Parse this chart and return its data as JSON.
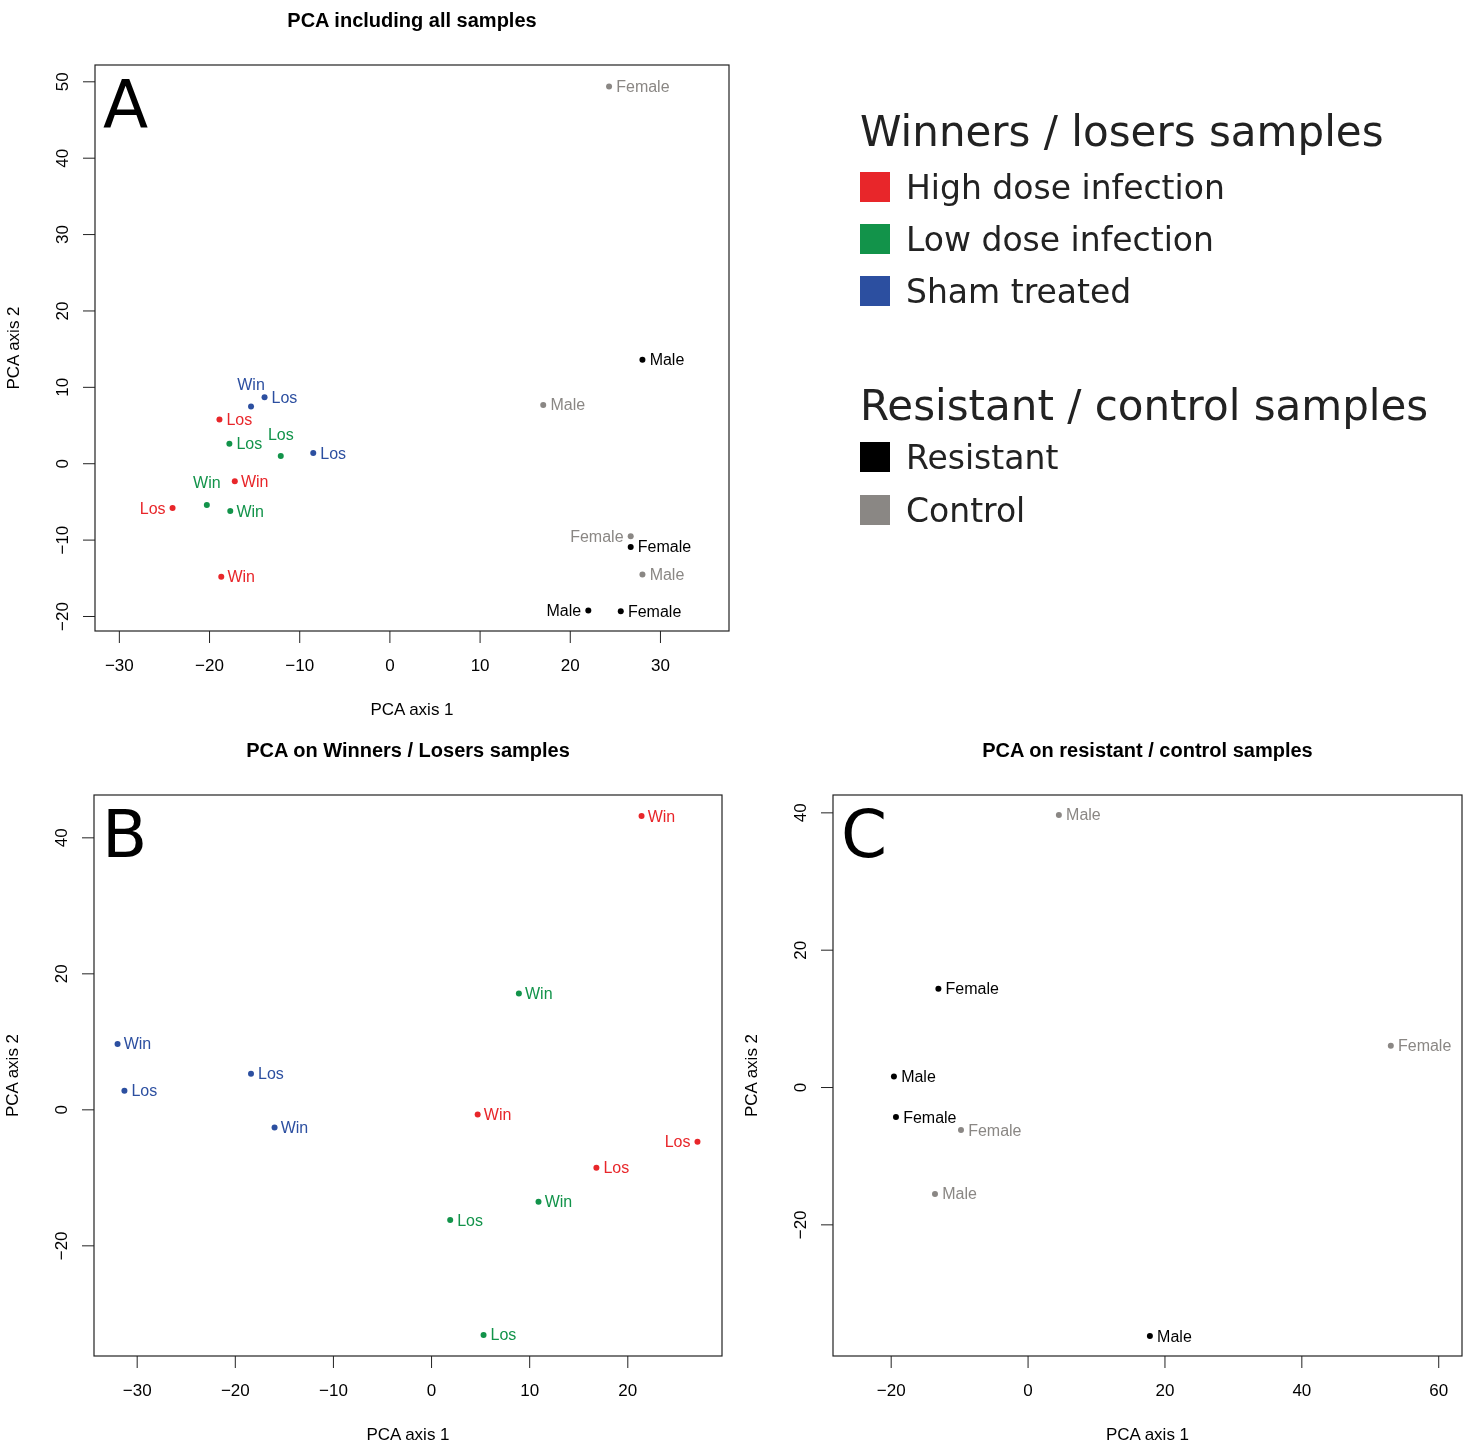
{
  "chart_data": [
    {
      "type": "scatter",
      "title": "PCA including all samples",
      "xlabel": "PCA axis 1",
      "ylabel": "PCA axis 2",
      "xlim": [
        -32.7,
        37.6
      ],
      "ylim": [
        -21.9,
        52.2
      ],
      "xticks": [
        -30,
        -20,
        -10,
        0,
        10,
        20,
        30
      ],
      "yticks": [
        -20,
        -10,
        0,
        10,
        20,
        30,
        40,
        50
      ],
      "marker": "circle",
      "legend": "right",
      "legend_title": "Winners / losers samples",
      "annotations": [
        "A",
        "Resistant / control samples"
      ],
      "series": [
        {
          "name": "High dose infection",
          "color": "#e8262a",
          "x": [
            -18.9,
            -17.2,
            -24.1,
            -18.7
          ],
          "values": [
            5.8,
            -2.3,
            -5.8,
            -14.8
          ],
          "value_labels": [
            "Los",
            "Win",
            "Los",
            "Win"
          ]
        },
        {
          "name": "Low dose infection",
          "color": "#12934a",
          "x": [
            -17.8,
            -12.1,
            -20.3,
            -17.7
          ],
          "values": [
            2.6,
            1.0,
            -5.4,
            -6.2
          ],
          "value_labels": [
            "Los",
            "Los",
            "Win",
            "Win"
          ]
        },
        {
          "name": "Sham treated",
          "color": "#2c4fa0",
          "x": [
            -15.4,
            -13.9,
            -8.5
          ],
          "values": [
            7.5,
            8.7,
            1.4
          ],
          "value_labels": [
            "Win",
            "Los",
            "Los"
          ]
        },
        {
          "name": "Resistant",
          "color": "#000000",
          "x": [
            28.0,
            26.7,
            22.0,
            25.6
          ],
          "values": [
            13.6,
            -10.9,
            -19.2,
            -19.3
          ],
          "value_labels": [
            "Male",
            "Female",
            "Male",
            "Female"
          ]
        },
        {
          "name": "Control",
          "color": "#8a8784",
          "x": [
            24.3,
            17.0,
            26.7,
            28.0
          ],
          "values": [
            49.4,
            7.7,
            -9.5,
            -14.5
          ],
          "value_labels": [
            "Female",
            "Male",
            "Female",
            "Male"
          ]
        }
      ]
    },
    {
      "type": "scatter",
      "title": "PCA on Winners / Losers samples",
      "xlabel": "PCA axis 1",
      "ylabel": "PCA axis 2",
      "xlim": [
        -34.4,
        29.6
      ],
      "ylim": [
        -36.2,
        46.3
      ],
      "xticks": [
        -30,
        -20,
        -10,
        0,
        10,
        20
      ],
      "yticks": [
        -20,
        0,
        20,
        40
      ],
      "marker": "circle",
      "annotations": [
        "B"
      ],
      "series": [
        {
          "color": "#e8262a",
          "x": [
            21.4,
            4.7,
            27.1,
            16.8
          ],
          "values": [
            43.2,
            -0.7,
            -4.7,
            -8.5
          ],
          "value_labels": [
            "Win",
            "Win",
            "Los",
            "Los"
          ]
        },
        {
          "color": "#12934a",
          "x": [
            8.9,
            10.9,
            1.9,
            5.3
          ],
          "values": [
            17.1,
            -13.5,
            -16.2,
            -33.1
          ],
          "value_labels": [
            "Win",
            "Win",
            "Los",
            "Los"
          ]
        },
        {
          "color": "#2c4fa0",
          "x": [
            -32.0,
            -31.3,
            -18.4,
            -16.0
          ],
          "values": [
            9.7,
            2.8,
            5.3,
            -2.6
          ],
          "value_labels": [
            "Win",
            "Los",
            "Los",
            "Win"
          ]
        }
      ]
    },
    {
      "type": "scatter",
      "title": "PCA on resistant / control samples",
      "xlabel": "PCA axis 1",
      "ylabel": "PCA axis 2",
      "xlim": [
        -28.5,
        63.4
      ],
      "ylim": [
        -39.1,
        42.6
      ],
      "xticks": [
        -20,
        0,
        20,
        40,
        60
      ],
      "yticks": [
        -20,
        0,
        20,
        40
      ],
      "marker": "circle",
      "annotations": [
        "C"
      ],
      "series": [
        {
          "color": "#000000",
          "x": [
            -13.1,
            -19.6,
            -19.3,
            17.8
          ],
          "values": [
            14.4,
            1.6,
            -4.3,
            -36.2
          ],
          "value_labels": [
            "Female",
            "Male",
            "Female",
            "Male"
          ]
        },
        {
          "color": "#8a8784",
          "x": [
            4.5,
            53.0,
            -9.8,
            -13.6
          ],
          "values": [
            39.7,
            6.1,
            -6.2,
            -15.5
          ],
          "value_labels": [
            "Male",
            "Female",
            "Female",
            "Male"
          ]
        }
      ]
    }
  ]
}
